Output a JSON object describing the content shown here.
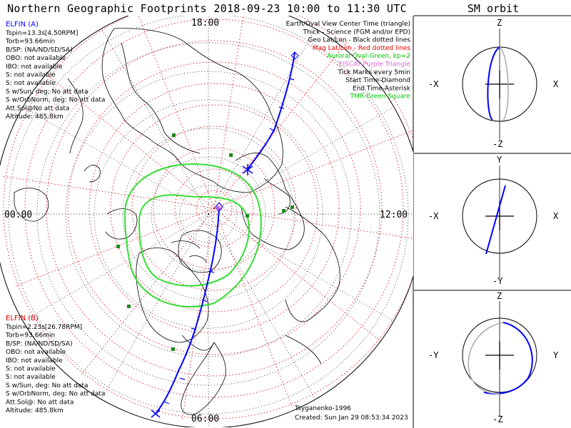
{
  "title": "Northern Geographic Footprints 2018-09-23 10:00 to 11:30 UTC",
  "sm_title": "SM orbit",
  "clock_labels": {
    "top": "18:00",
    "left": "00:00",
    "right": "12:00",
    "bottom": "06:00"
  },
  "elfin_a": {
    "header": "ELFIN (A)",
    "lines": [
      "Tspin=13.3s[4.50RPM]",
      "Torb=93.66min",
      "B/SP: (NA/ND/SD/SA)",
      "OBO: not available",
      "IBO: not available",
      "S: not available",
      "S: not available",
      "S w/Sun, deg: No att data",
      "S w/OrbNorm, deg: No att data",
      "Att.Sol@No att data",
      "Altitude: 485.8km"
    ]
  },
  "elfin_b": {
    "header": "ELFIN (B)",
    "lines": [
      "Tspin=2.23s[26.78RPM]",
      "Torb=93.66min",
      "B/SP: (NA/ND/SD/SA)",
      "OBO: not available",
      "IBO: not available",
      "S: not available",
      "S: not available",
      "S w/Sun, deg: No att data",
      "S w/OrbNorm, deg: No att data",
      "Att.Sol@: No att data",
      "Altitude: 485.8km"
    ]
  },
  "legend": [
    {
      "text": "Earth/Oval View Center Time (triangle)",
      "color": "#000000"
    },
    {
      "text": "Thick - Science (FGM and/or EPD)",
      "color": "#000000"
    },
    {
      "text": "Geo Lat/Lon - Black dotted lines",
      "color": "#000000"
    },
    {
      "text": "Mag Lat/Lon - Red dotted lines",
      "color": "#e00000"
    },
    {
      "text": "Auroral Oval-Green, kp=2",
      "color": "#00c000"
    },
    {
      "text": "EISCAT-Purple Triangle",
      "color": "#e060e0"
    },
    {
      "text": "Tick Marks every 5min",
      "color": "#000000"
    },
    {
      "text": "Start Time-Diamond",
      "color": "#000000"
    },
    {
      "text": "End Time-Asterisk",
      "color": "#000000"
    },
    {
      "text": "TMR-Green Square",
      "color": "#00c000"
    }
  ],
  "footer": {
    "model": "Tsyganenko-1996",
    "created": "Created: Sun Jan 29 08:53:34 2023"
  },
  "sm_panels": [
    {
      "top": "Z",
      "bottom": "-Z",
      "left": "-X",
      "right": "X"
    },
    {
      "top": "Y",
      "bottom": "-Y",
      "left": "-X",
      "right": "X"
    },
    {
      "top": "Z",
      "bottom": "-Z",
      "left": "-Y",
      "right": "Y"
    }
  ],
  "colors": {
    "orbit": "#0000ff",
    "mag_grid": "#e00000",
    "oval": "#33dd33",
    "geo_grid": "#000000"
  }
}
